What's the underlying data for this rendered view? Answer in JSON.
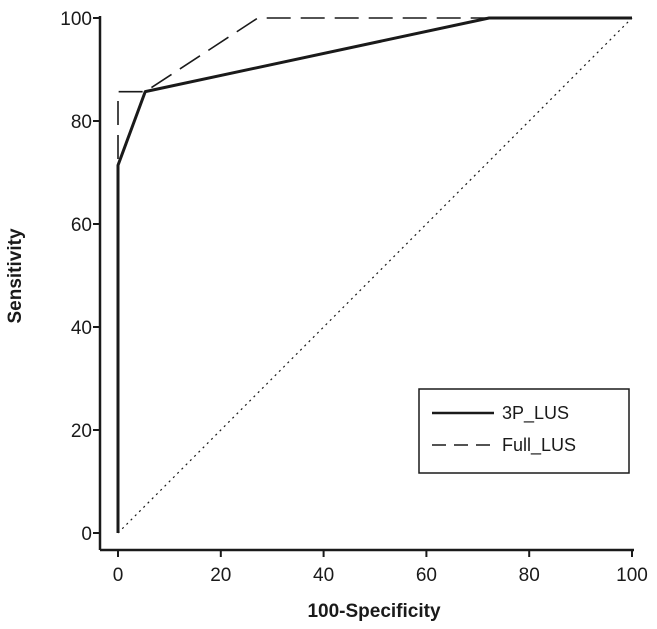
{
  "chart_data": {
    "type": "line",
    "title": "",
    "xlabel": "100-Specificity",
    "ylabel": "Sensitivity",
    "xlim": [
      0,
      100
    ],
    "ylim": [
      0,
      100
    ],
    "xticks": [
      "0",
      "20",
      "40",
      "60",
      "80",
      "100"
    ],
    "yticks": [
      "0",
      "20",
      "40",
      "60",
      "80",
      "100"
    ],
    "grid": false,
    "legend_position": "bottom-right",
    "series": [
      {
        "name": "3P_LUS",
        "style": "solid",
        "color": "#1a1a1a",
        "points": [
          [
            0,
            0
          ],
          [
            0,
            71.4
          ],
          [
            5.3,
            85.7
          ],
          [
            72.2,
            100
          ],
          [
            100,
            100
          ]
        ]
      },
      {
        "name": "Full_LUS",
        "style": "dashed",
        "color": "#1a1a1a",
        "points": [
          [
            0,
            0
          ],
          [
            0,
            78.6
          ],
          [
            0,
            85.7
          ],
          [
            5.3,
            85.7
          ],
          [
            27.2,
            100
          ],
          [
            100,
            100
          ]
        ]
      }
    ],
    "reference_line": {
      "style": "dotted",
      "points": [
        [
          0,
          0
        ],
        [
          100,
          100
        ]
      ]
    }
  }
}
